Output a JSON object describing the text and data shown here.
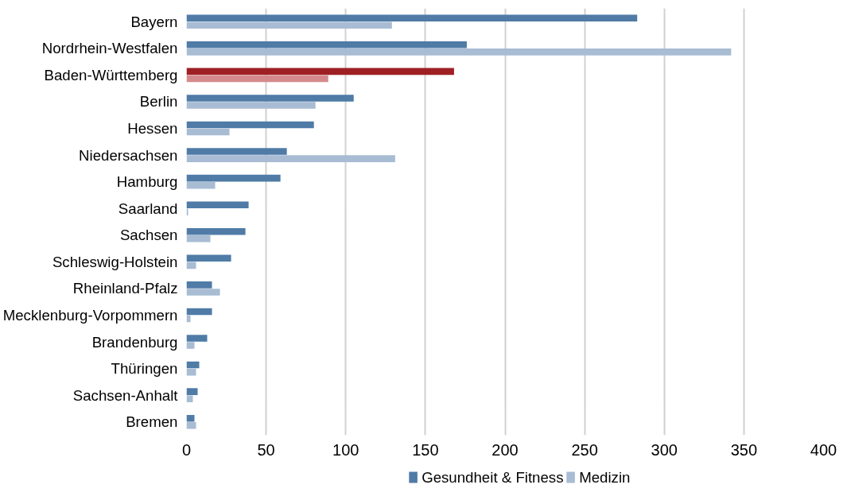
{
  "chart_data": {
    "type": "bar",
    "orientation": "horizontal",
    "categories": [
      "Bayern",
      "Nordrhein-Westfalen",
      "Baden-Württemberg",
      "Berlin",
      "Hessen",
      "Niedersachsen",
      "Hamburg",
      "Saarland",
      "Sachsen",
      "Schleswig-Holstein",
      "Rheinland-Pfalz",
      "Mecklenburg-Vorpommern",
      "Brandenburg",
      "Thüringen",
      "Sachsen-Anhalt",
      "Bremen"
    ],
    "series": [
      {
        "name": "Gesundheit & Fitness",
        "color": "#4f7ba6",
        "colors": [
          "#4f7ba6",
          "#4f7ba6",
          "#9e2024",
          "#4f7ba6",
          "#4f7ba6",
          "#4f7ba6",
          "#4f7ba6",
          "#4f7ba6",
          "#4f7ba6",
          "#4f7ba6",
          "#4f7ba6",
          "#4f7ba6",
          "#4f7ba6",
          "#4f7ba6",
          "#4f7ba6",
          "#4f7ba6"
        ],
        "values": [
          283,
          176,
          168,
          105,
          80,
          63,
          59,
          39,
          37,
          28,
          16,
          16,
          13,
          8,
          7,
          5
        ]
      },
      {
        "name": "Medizin",
        "color": "#a8bcd3",
        "colors": [
          "#a8bcd3",
          "#a8bcd3",
          "#d48a8c",
          "#a8bcd3",
          "#a8bcd3",
          "#a8bcd3",
          "#a8bcd3",
          "#a8bcd3",
          "#a8bcd3",
          "#a8bcd3",
          "#a8bcd3",
          "#a8bcd3",
          "#a8bcd3",
          "#a8bcd3",
          "#a8bcd3",
          "#a8bcd3"
        ],
        "values": [
          129,
          342,
          89,
          81,
          27,
          131,
          18,
          1,
          15,
          6,
          21,
          2.5,
          5,
          6,
          4,
          6
        ]
      }
    ],
    "xlim": [
      0,
      400
    ],
    "xticks": [
      0,
      50,
      100,
      150,
      200,
      250,
      300,
      350,
      400
    ],
    "grid": "x",
    "legend": "bottom"
  }
}
